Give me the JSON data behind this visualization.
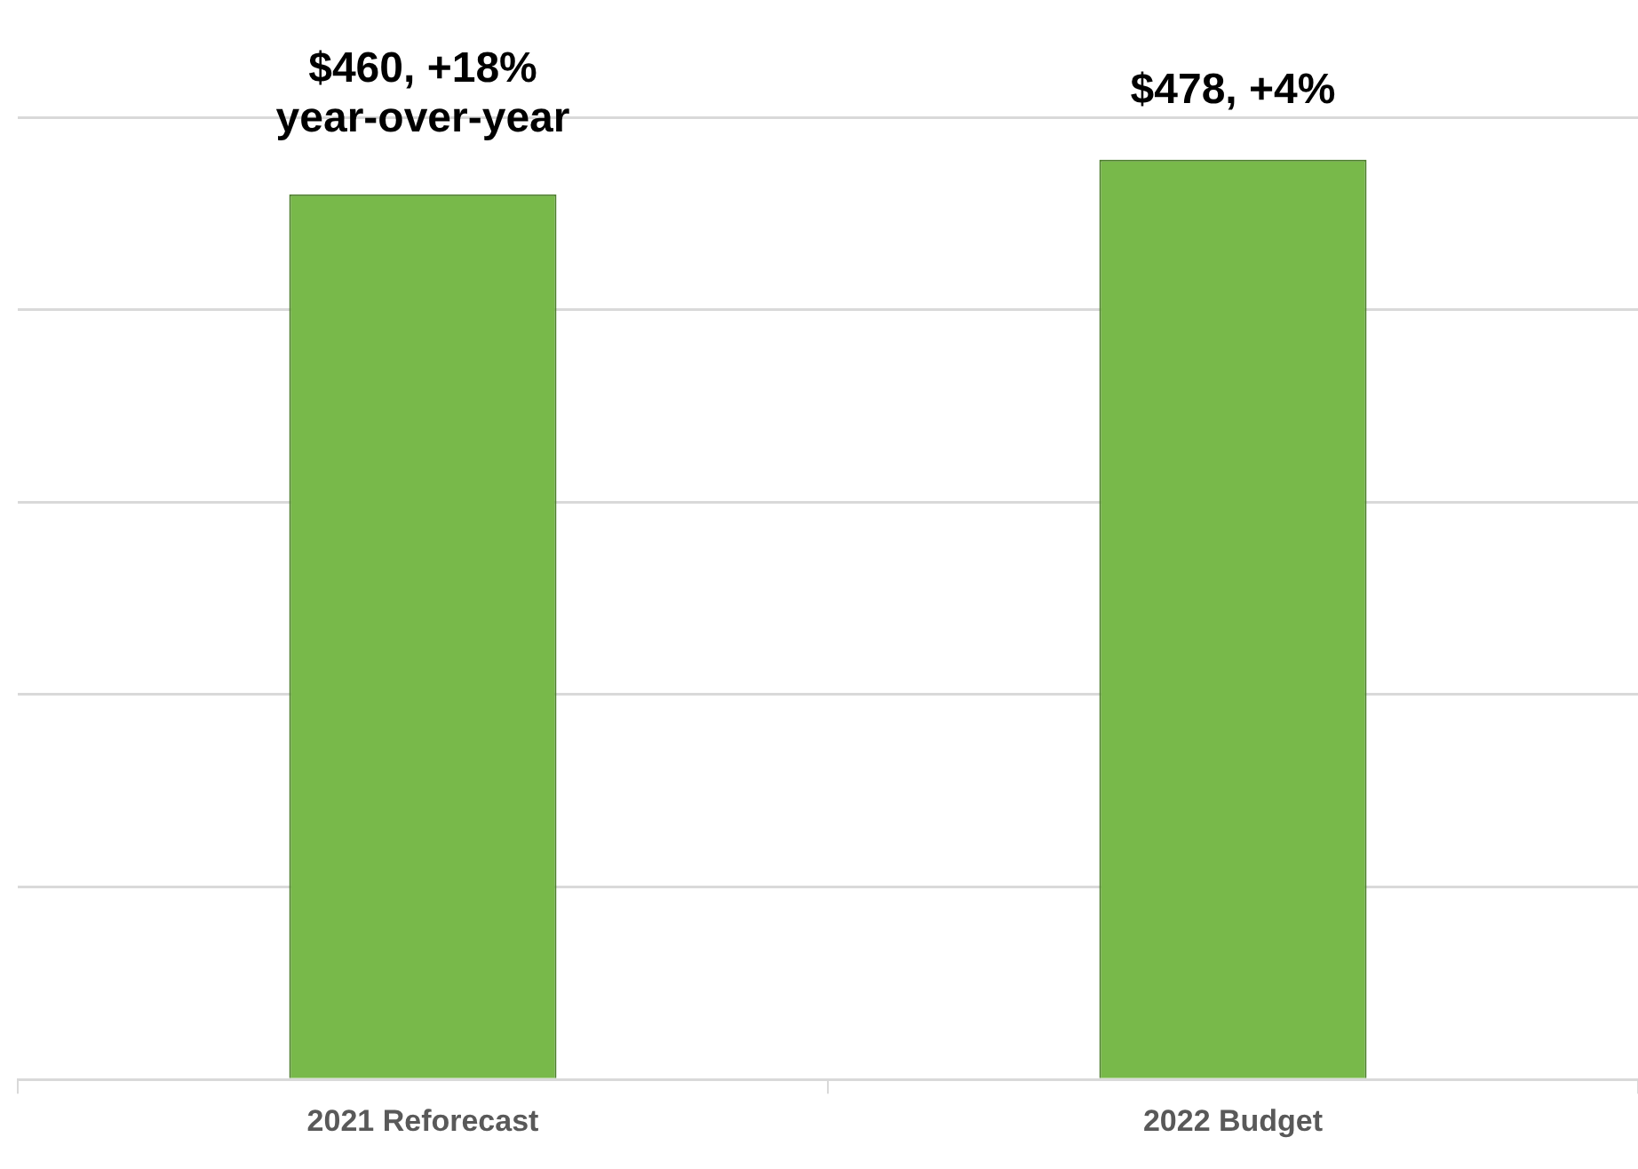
{
  "chart_data": {
    "type": "bar",
    "categories": [
      "2021 Reforecast",
      "2022 Budget"
    ],
    "values": [
      460,
      478
    ],
    "color": "#78b94a",
    "value_labels": [
      "$460, +18% year-over-year",
      "$478, +4%"
    ],
    "ylim": [
      0,
      500
    ],
    "yticks": [
      {
        "value": 0,
        "label": null
      },
      {
        "value": 100,
        "label": null
      },
      {
        "value": 200,
        "label": null
      },
      {
        "value": 300,
        "label": null
      },
      {
        "value": 400,
        "label": null
      },
      {
        "value": 500,
        "label": null
      }
    ],
    "grid": "y",
    "tick_labels": "x",
    "legend": false
  }
}
